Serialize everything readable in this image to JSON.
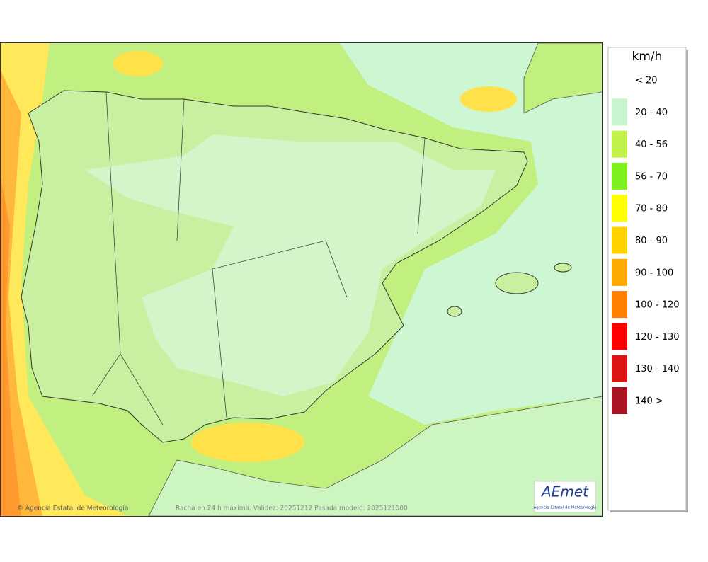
{
  "legend": {
    "title": "km/h",
    "items": [
      {
        "label": "< 20",
        "color": null
      },
      {
        "label": "20 - 40",
        "color": "#c8f5cf"
      },
      {
        "label": "40 - 56",
        "color": "#c2f24a"
      },
      {
        "label": "56 - 70",
        "color": "#7ef01e"
      },
      {
        "label": "70 - 80",
        "color": "#ffff00"
      },
      {
        "label": "80 - 90",
        "color": "#ffd200"
      },
      {
        "label": "90 - 100",
        "color": "#ffaa00"
      },
      {
        "label": "100 - 120",
        "color": "#ff8000"
      },
      {
        "label": "120 - 130",
        "color": "#ff0000"
      },
      {
        "label": "130 - 140",
        "color": "#dc1414"
      },
      {
        "label": "140 >",
        "color": "#aa1422"
      }
    ]
  },
  "footer": {
    "copyright": "© Agencia Estatal de Meteorología",
    "caption": "Racha en 24 h máxima. Validez: 20251212 Pasada modelo: 2025121000"
  },
  "logo": {
    "text": "AEmet",
    "subtitle": "Agencia Estatal de Meteorología"
  }
}
